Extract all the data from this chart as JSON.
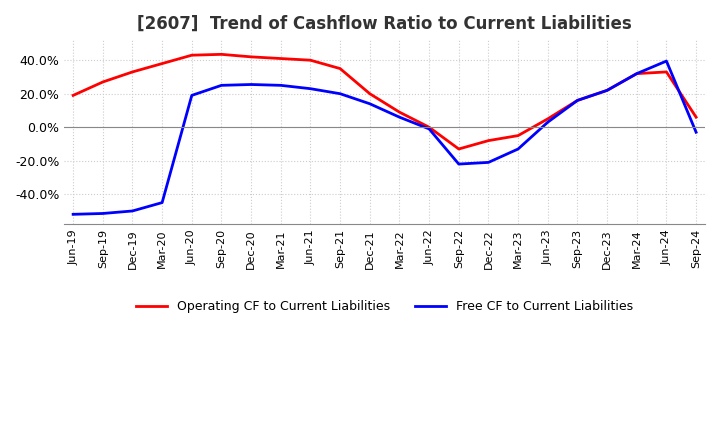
{
  "title": "[2607]  Trend of Cashflow Ratio to Current Liabilities",
  "x_labels": [
    "Jun-19",
    "Sep-19",
    "Dec-19",
    "Mar-20",
    "Jun-20",
    "Sep-20",
    "Dec-20",
    "Mar-21",
    "Jun-21",
    "Sep-21",
    "Dec-21",
    "Mar-22",
    "Jun-22",
    "Sep-22",
    "Dec-22",
    "Mar-23",
    "Jun-23",
    "Sep-23",
    "Dec-23",
    "Mar-24",
    "Jun-24",
    "Sep-24"
  ],
  "operating_cf": [
    19.0,
    27.0,
    33.0,
    38.0,
    43.0,
    43.5,
    42.0,
    41.0,
    40.0,
    35.0,
    20.0,
    9.0,
    0.0,
    -13.0,
    -8.0,
    -5.0,
    5.0,
    16.0,
    22.0,
    32.0,
    33.0,
    6.0
  ],
  "free_cf": [
    -52.0,
    -51.5,
    -50.0,
    -45.0,
    19.0,
    25.0,
    25.5,
    25.0,
    23.0,
    20.0,
    14.0,
    6.0,
    -1.0,
    -22.0,
    -21.0,
    -13.0,
    3.0,
    16.0,
    22.0,
    32.0,
    39.5,
    -3.0
  ],
  "ylim": [
    -58,
    52
  ],
  "yticks": [
    -40.0,
    -20.0,
    0.0,
    20.0,
    40.0
  ],
  "operating_color": "#ff0000",
  "free_color": "#0000ff",
  "grid_color": "#cccccc",
  "background_color": "#ffffff",
  "legend_operating": "Operating CF to Current Liabilities",
  "legend_free": "Free CF to Current Liabilities"
}
